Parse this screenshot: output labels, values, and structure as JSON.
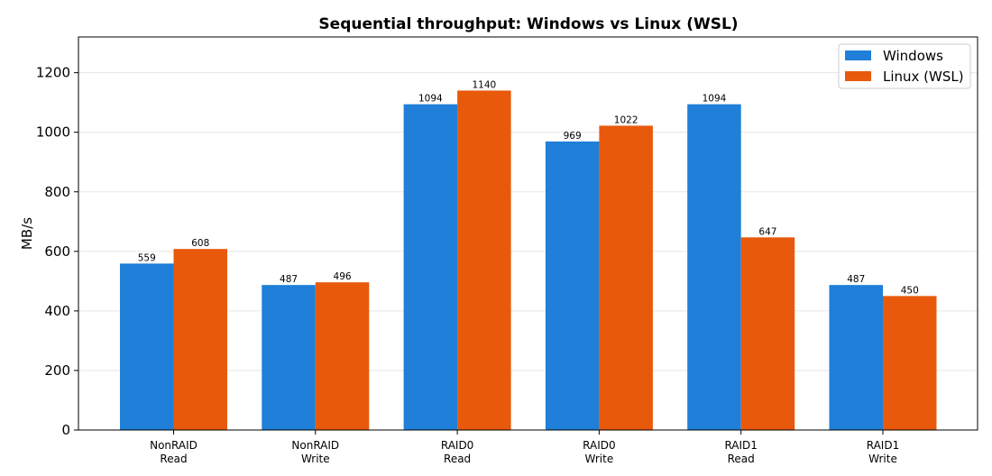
{
  "chart_data": {
    "type": "bar",
    "title": "Sequential throughput: Windows vs Linux (WSL)",
    "xlabel": "",
    "ylabel": "MB/s",
    "categories": [
      [
        "NonRAID",
        "Read"
      ],
      [
        "NonRAID",
        "Write"
      ],
      [
        "RAID0",
        "Read"
      ],
      [
        "RAID0",
        "Write"
      ],
      [
        "RAID1",
        "Read"
      ],
      [
        "RAID1",
        "Write"
      ]
    ],
    "series": [
      {
        "name": "Windows",
        "color": "#1f7fd9",
        "values": [
          559,
          487,
          1094,
          969,
          1094,
          487
        ]
      },
      {
        "name": "Linux (WSL)",
        "color": "#e8590c",
        "values": [
          608,
          496,
          1140,
          1022,
          647,
          450
        ]
      }
    ],
    "ylim": [
      0,
      1320
    ],
    "yticks": [
      0,
      200,
      400,
      600,
      800,
      1000,
      1200
    ],
    "grid": "y",
    "legend_position": "top-right"
  }
}
